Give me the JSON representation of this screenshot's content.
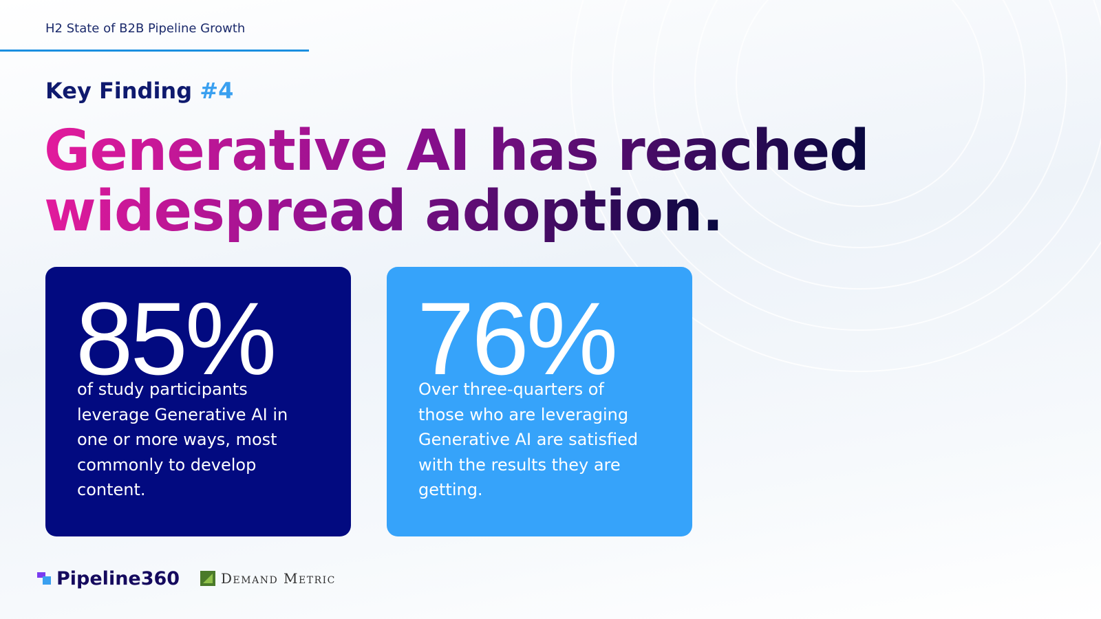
{
  "header": {
    "title": "H2 State of B2B Pipeline Growth"
  },
  "finding": {
    "label": "Key Finding",
    "number": "#4"
  },
  "headline": {
    "lines": [
      "Generative AI has reached",
      "widespread adoption."
    ]
  },
  "cards": [
    {
      "stat": "85%",
      "text": "of study participants leverage Generative AI in one or more ways, most commonly to develop content."
    },
    {
      "stat": "76%",
      "text": "Over three-quarters of those who are leveraging Generative AI are satisfied with the results they are getting."
    }
  ],
  "footer": {
    "logos": [
      "Pipeline360",
      "Demand Metric"
    ]
  }
}
